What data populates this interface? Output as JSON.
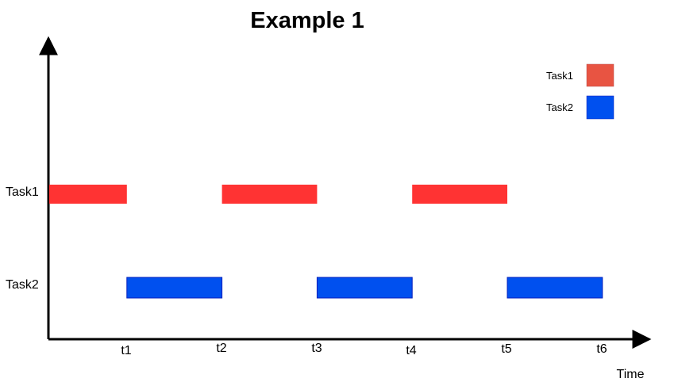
{
  "title": "Example 1",
  "colors": {
    "task1": "#ff3333",
    "task1_legend": "#e85442",
    "task2": "#0050ef",
    "axis": "#000000"
  },
  "rows": [
    {
      "label": "Task1"
    },
    {
      "label": "Task2"
    }
  ],
  "x_axis": {
    "label": "Time",
    "ticks": [
      "t1",
      "t2",
      "t3",
      "t4",
      "t5",
      "t6"
    ]
  },
  "legend": {
    "position": "top-right",
    "items": [
      {
        "label": "Task1"
      },
      {
        "label": "Task2"
      }
    ]
  },
  "chart_data": {
    "type": "gantt",
    "title": "Example 1",
    "xlabel": "Time",
    "categories": [
      "Task1",
      "Task2"
    ],
    "tick_labels": [
      "t1",
      "t2",
      "t3",
      "t4",
      "t5",
      "t6"
    ],
    "series": [
      {
        "name": "Task1",
        "segments": [
          [
            0,
            1
          ],
          [
            2,
            3
          ],
          [
            4,
            5
          ]
        ]
      },
      {
        "name": "Task2",
        "segments": [
          [
            1,
            2
          ],
          [
            3,
            4
          ],
          [
            5,
            6
          ]
        ]
      }
    ]
  }
}
